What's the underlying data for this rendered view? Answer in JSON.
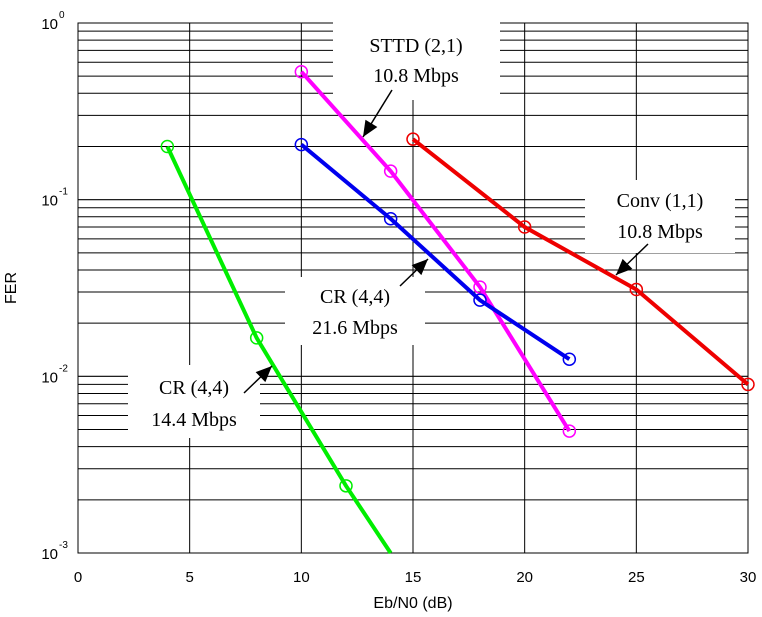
{
  "chart_data": {
    "type": "line",
    "xlabel": "Eb/N0 (dB)",
    "ylabel": "FER",
    "xlim": [
      0,
      30
    ],
    "ylim": [
      0.001,
      1
    ],
    "yscale": "log",
    "grid": true,
    "x_ticks": [
      "0",
      "5",
      "10",
      "15",
      "20",
      "25",
      "30"
    ],
    "y_ticks": [
      {
        "base": "10",
        "exp": "0",
        "value": 1
      },
      {
        "base": "10",
        "exp": "-1",
        "value": 0.1
      },
      {
        "base": "10",
        "exp": "-2",
        "value": 0.01
      },
      {
        "base": "10",
        "exp": "-3",
        "value": 0.001
      }
    ],
    "series": [
      {
        "color": "#00ee00",
        "x": [
          4,
          8,
          12,
          14
        ],
        "y": [
          0.2,
          0.0165,
          0.0024,
          0.001
        ],
        "markers": [
          true,
          true,
          true,
          false
        ]
      },
      {
        "color": "#ff00ff",
        "x": [
          10,
          14,
          18,
          22
        ],
        "y": [
          0.53,
          0.145,
          0.032,
          0.0049
        ],
        "markers": [
          true,
          true,
          true,
          true
        ]
      },
      {
        "color": "#0000ee",
        "x": [
          10,
          14,
          18,
          22
        ],
        "y": [
          0.205,
          0.078,
          0.027,
          0.0125
        ],
        "markers": [
          true,
          true,
          true,
          true
        ]
      },
      {
        "color": "#ee0000",
        "x": [
          15,
          20,
          25,
          30
        ],
        "y": [
          0.22,
          0.07,
          0.031,
          0.009
        ],
        "markers": [
          true,
          true,
          true,
          true
        ]
      }
    ],
    "annotations": [
      {
        "line1": "STTD (2,1)",
        "line2": "10.8 Mbps"
      },
      {
        "line1": "Conv (1,1)",
        "line2": "10.8 Mbps"
      },
      {
        "line1": "CR (4,4)",
        "line2": "21.6 Mbps"
      },
      {
        "line1": "CR (4,4)",
        "line2": "14.4 Mbps"
      }
    ]
  }
}
